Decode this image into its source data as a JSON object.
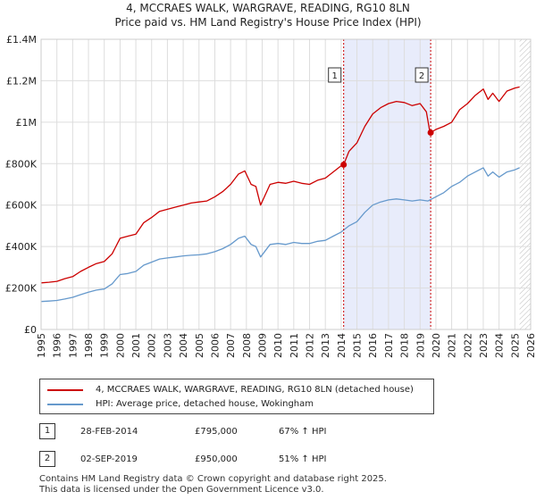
{
  "title_line1": "4, MCCRAES WALK, WARGRAVE, READING, RG10 8LN",
  "title_line2": "Price paid vs. HM Land Registry's House Price Index (HPI)",
  "chart_data": {
    "type": "line",
    "title": "4, MCCRAES WALK, WARGRAVE, READING, RG10 8LN — Price paid vs. HM Land Registry's House Price Index (HPI)",
    "xlabel": "",
    "ylabel": "",
    "xlim": [
      1995,
      2026
    ],
    "ylim": [
      0,
      1400000
    ],
    "x_ticks": [
      1995,
      1996,
      1997,
      1998,
      1999,
      2000,
      2001,
      2002,
      2003,
      2004,
      2005,
      2006,
      2007,
      2008,
      2009,
      2010,
      2011,
      2012,
      2013,
      2014,
      2015,
      2016,
      2017,
      2018,
      2019,
      2020,
      2021,
      2022,
      2023,
      2024,
      2025,
      2026
    ],
    "y_ticks": [
      0,
      200000,
      400000,
      600000,
      800000,
      1000000,
      1200000,
      1400000
    ],
    "y_tick_labels": [
      "£0",
      "£200K",
      "£400K",
      "£600K",
      "£800K",
      "£1M",
      "£1.2M",
      "£1.4M"
    ],
    "grid": true,
    "series": [
      {
        "name": "4, MCCRAES WALK, WARGRAVE, READING, RG10 8LN (detached house)",
        "color": "#cc0000",
        "x": [
          1995.0,
          1995.5,
          1996.0,
          1996.5,
          1997.0,
          1997.5,
          1998.0,
          1998.5,
          1999.0,
          1999.5,
          2000.0,
          2000.5,
          2001.0,
          2001.5,
          2002.0,
          2002.5,
          2003.0,
          2003.5,
          2004.0,
          2004.5,
          2005.0,
          2005.5,
          2006.0,
          2006.5,
          2007.0,
          2007.5,
          2007.9,
          2008.3,
          2008.6,
          2008.9,
          2009.2,
          2009.5,
          2010.0,
          2010.5,
          2011.0,
          2011.5,
          2012.0,
          2012.5,
          2013.0,
          2013.5,
          2014.0,
          2014.16,
          2014.5,
          2015.0,
          2015.5,
          2016.0,
          2016.5,
          2017.0,
          2017.5,
          2018.0,
          2018.5,
          2019.0,
          2019.4,
          2019.6,
          2019.67,
          2020.0,
          2020.5,
          2021.0,
          2021.5,
          2022.0,
          2022.5,
          2023.0,
          2023.3,
          2023.6,
          2024.0,
          2024.5,
          2025.0,
          2025.3
        ],
        "values": [
          225000,
          228000,
          232000,
          245000,
          255000,
          280000,
          300000,
          318000,
          328000,
          365000,
          440000,
          450000,
          460000,
          515000,
          540000,
          570000,
          580000,
          590000,
          600000,
          610000,
          615000,
          620000,
          640000,
          665000,
          700000,
          750000,
          765000,
          700000,
          690000,
          600000,
          650000,
          700000,
          710000,
          705000,
          715000,
          705000,
          700000,
          720000,
          730000,
          760000,
          790000,
          795000,
          860000,
          900000,
          980000,
          1040000,
          1070000,
          1090000,
          1100000,
          1095000,
          1080000,
          1090000,
          1050000,
          960000,
          950000,
          965000,
          980000,
          1000000,
          1060000,
          1090000,
          1130000,
          1160000,
          1110000,
          1140000,
          1100000,
          1150000,
          1165000,
          1170000
        ]
      },
      {
        "name": "HPI: Average price, detached house, Wokingham",
        "color": "#6699cc",
        "x": [
          1995.0,
          1995.5,
          1996.0,
          1996.5,
          1997.0,
          1997.5,
          1998.0,
          1998.5,
          1999.0,
          1999.5,
          2000.0,
          2000.5,
          2001.0,
          2001.5,
          2002.0,
          2002.5,
          2003.0,
          2003.5,
          2004.0,
          2004.5,
          2005.0,
          2005.5,
          2006.0,
          2006.5,
          2007.0,
          2007.5,
          2007.9,
          2008.3,
          2008.6,
          2008.9,
          2009.2,
          2009.5,
          2010.0,
          2010.5,
          2011.0,
          2011.5,
          2012.0,
          2012.5,
          2013.0,
          2013.5,
          2014.0,
          2014.5,
          2015.0,
          2015.5,
          2016.0,
          2016.5,
          2017.0,
          2017.5,
          2018.0,
          2018.5,
          2019.0,
          2019.5,
          2020.0,
          2020.5,
          2021.0,
          2021.5,
          2022.0,
          2022.5,
          2023.0,
          2023.3,
          2023.6,
          2024.0,
          2024.5,
          2025.0,
          2025.3
        ],
        "values": [
          135000,
          137000,
          140000,
          147000,
          155000,
          168000,
          180000,
          190000,
          195000,
          220000,
          265000,
          270000,
          280000,
          310000,
          325000,
          340000,
          345000,
          350000,
          355000,
          358000,
          360000,
          365000,
          375000,
          390000,
          410000,
          440000,
          450000,
          410000,
          400000,
          350000,
          380000,
          410000,
          415000,
          410000,
          420000,
          415000,
          415000,
          425000,
          430000,
          450000,
          470000,
          500000,
          520000,
          565000,
          600000,
          615000,
          625000,
          630000,
          625000,
          620000,
          625000,
          620000,
          640000,
          660000,
          690000,
          710000,
          740000,
          760000,
          780000,
          740000,
          760000,
          735000,
          760000,
          770000,
          780000
        ]
      }
    ],
    "annotations": [
      {
        "label": "1",
        "x": 2014.16,
        "y": 795000,
        "date": "28-FEB-2014",
        "price": "£795,000",
        "hpi": "67% ↑ HPI"
      },
      {
        "label": "2",
        "x": 2019.67,
        "y": 950000,
        "date": "02-SEP-2019",
        "price": "£950,000",
        "hpi": "51% ↑ HPI"
      }
    ],
    "shaded_ranges": [
      [
        2014.16,
        2019.67
      ],
      [
        2025.3,
        2026
      ]
    ]
  },
  "legend": {
    "red_label": "4, MCCRAES WALK, WARGRAVE, READING, RG10 8LN (detached house)",
    "blue_label": "HPI: Average price, detached house, Wokingham"
  },
  "transactions": [
    {
      "num": "1",
      "date": "28-FEB-2014",
      "price": "£795,000",
      "hpi": "67% ↑ HPI"
    },
    {
      "num": "2",
      "date": "02-SEP-2019",
      "price": "£950,000",
      "hpi": "51% ↑ HPI"
    }
  ],
  "footer": {
    "line1": "Contains HM Land Registry data © Crown copyright and database right 2025.",
    "line2": "This data is licensed under the Open Government Licence v3.0."
  },
  "colors": {
    "red": "#cc0000",
    "blue": "#6699cc",
    "shade": "#e8ecfb",
    "grid": "#dddddd"
  }
}
